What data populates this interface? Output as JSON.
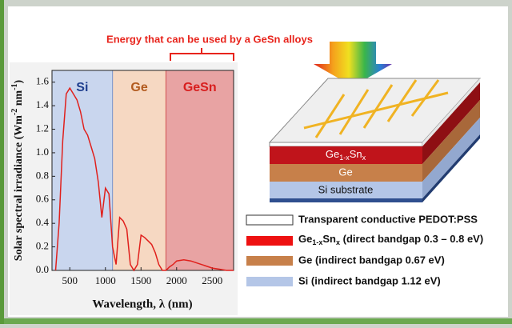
{
  "chart_data": {
    "type": "line",
    "annotation": "Energy that can be used by a GeSn alloys",
    "x_label": "Wavelength, λ (nm)",
    "y_label": [
      "Solar spectral irradiance (Wm",
      "-2",
      " nm",
      "-1",
      ")"
    ],
    "x": [
      300,
      350,
      400,
      450,
      500,
      550,
      600,
      650,
      700,
      750,
      800,
      850,
      900,
      950,
      1000,
      1050,
      1100,
      1150,
      1200,
      1250,
      1300,
      1350,
      1400,
      1450,
      1500,
      1550,
      1600,
      1650,
      1700,
      1750,
      1800,
      1850,
      1900,
      1950,
      2000,
      2100,
      2200,
      2300,
      2400,
      2500,
      2600,
      2700,
      2800
    ],
    "values": [
      0.0,
      0.4,
      1.1,
      1.5,
      1.55,
      1.5,
      1.45,
      1.35,
      1.2,
      1.15,
      1.05,
      0.95,
      0.75,
      0.45,
      0.7,
      0.65,
      0.2,
      0.05,
      0.45,
      0.42,
      0.35,
      0.05,
      0.0,
      0.05,
      0.3,
      0.28,
      0.25,
      0.22,
      0.15,
      0.05,
      0.0,
      0.0,
      0.03,
      0.05,
      0.08,
      0.09,
      0.08,
      0.06,
      0.04,
      0.02,
      0.01,
      0.0,
      0.0
    ],
    "color": "#e0201c",
    "regions": [
      {
        "name": "Si",
        "from": 250,
        "to": 1100,
        "color": "#c9d6ee",
        "text_color": "#1f3f8f"
      },
      {
        "name": "Ge",
        "from": 1100,
        "to": 1850,
        "color": "#f6d8c2",
        "text_color": "#b25a1e"
      },
      {
        "name": "GeSn",
        "from": 1850,
        "to": 2800,
        "color": "#e8a3a3",
        "text_color": "#d81e1e"
      }
    ],
    "xlim": [
      250,
      2800
    ],
    "xticks": [
      500,
      1000,
      1500,
      2000,
      2500
    ],
    "ylim": [
      0,
      1.7
    ],
    "yticks": [
      {
        "value": 0,
        "label": "0.0"
      },
      {
        "value": 0.2,
        "label": "0.2"
      },
      {
        "value": 0.4,
        "label": "0.4"
      },
      {
        "value": 0.6,
        "label": "0.6"
      },
      {
        "value": 0.8,
        "label": "0.8"
      },
      {
        "value": 1.0,
        "label": "1.0"
      },
      {
        "value": 1.2,
        "label": "1.2"
      },
      {
        "value": 1.4,
        "label": "1.4"
      },
      {
        "value": 1.6,
        "label": "1.6"
      }
    ]
  },
  "diagram": {
    "layers": {
      "gesn": [
        "Ge",
        "1-x",
        "Sn",
        "x"
      ],
      "ge": "Ge",
      "si": "Si substrate"
    },
    "legend": {
      "pedot": "Transparent conductive PEDOT:PSS",
      "gesn": [
        "Ge",
        "1-x",
        "Sn",
        "x",
        " (direct bandgap 0.3 – 0.8 eV)"
      ],
      "ge": "Ge (indirect bandgap 0.67 eV)",
      "si": "Si (indirect bandgap 1.12 eV)"
    }
  }
}
